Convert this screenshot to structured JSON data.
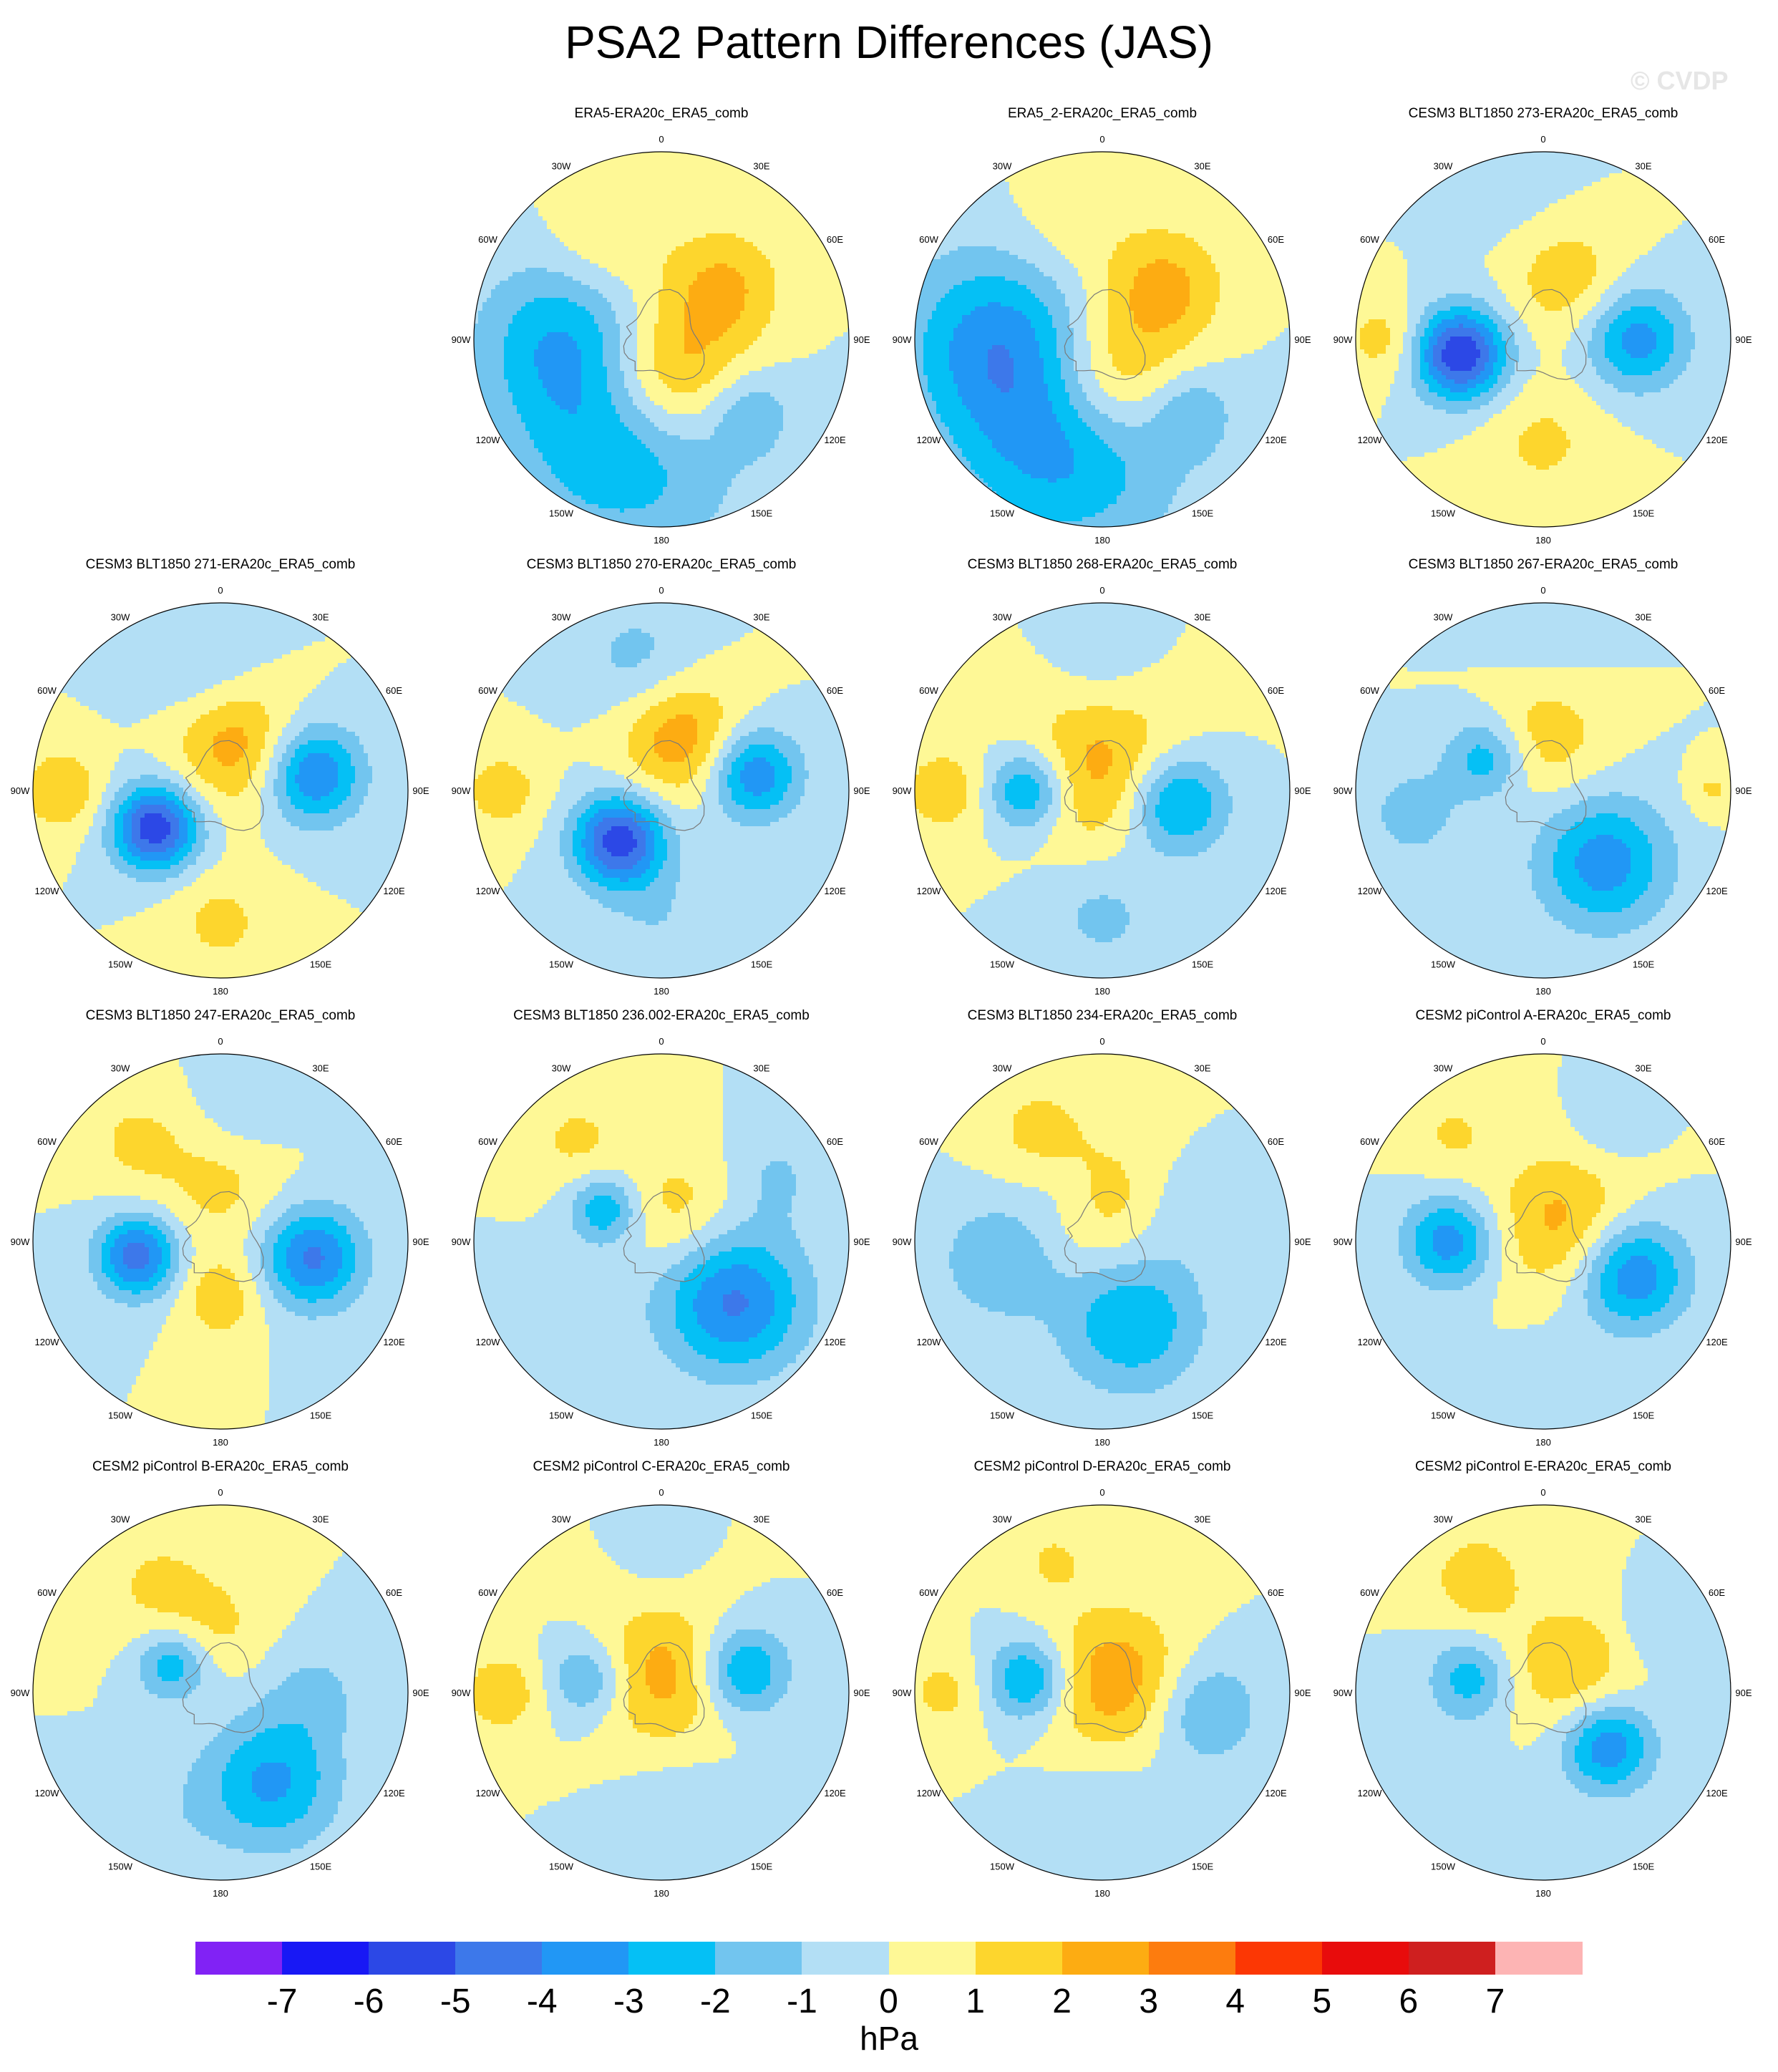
{
  "title": "PSA2 Pattern Differences (JAS)",
  "watermark": "© CVDP",
  "colorbar": {
    "units": "hPa",
    "tick_labels": [
      "-7",
      "-6",
      "-5",
      "-4",
      "-3",
      "-2",
      "-1",
      "0",
      "1",
      "2",
      "3",
      "4",
      "5",
      "6",
      "7"
    ],
    "colors": [
      "#8122f5",
      "#1818f5",
      "#2c48e6",
      "#3d78ea",
      "#2197f5",
      "#05c0f5",
      "#72c5ef",
      "#b3dff5",
      "#fef896",
      "#fdd62d",
      "#fdac12",
      "#fd7c0e",
      "#fc3704",
      "#e80c0c",
      "#cf1f1f",
      "#fdb4b4"
    ]
  },
  "longitude_labels": [
    "0",
    "30E",
    "60E",
    "90E",
    "120E",
    "150E",
    "180",
    "150W",
    "120W",
    "90W",
    "60W",
    "30W"
  ],
  "chart_data": {
    "type": "polar-contour-map",
    "projection": "south-polar-stereographic",
    "variable_units": "hPa",
    "levels": [
      -7,
      -6,
      -5,
      -4,
      -3,
      -2,
      -1,
      0,
      1,
      2,
      3,
      4,
      5,
      6,
      7
    ],
    "panels": [
      {
        "title": "ERA5-ERA20c_ERA5_comb",
        "pattern": [
          [
            330,
            0.6,
            55,
            1.2
          ],
          [
            50,
            0.42,
            60,
            2.3
          ],
          [
            170,
            0.2,
            70,
            3.6
          ],
          [
            200,
            0.55,
            110,
            -3.2
          ],
          [
            270,
            0.55,
            80,
            -2.4
          ],
          [
            130,
            0.62,
            40,
            -1.5
          ]
        ]
      },
      {
        "title": "ERA5_2-ERA20c_ERA5_comb",
        "pattern": [
          [
            340,
            0.6,
            60,
            0.8
          ],
          [
            50,
            0.42,
            60,
            2.5
          ],
          [
            170,
            0.2,
            70,
            3.3
          ],
          [
            200,
            0.55,
            110,
            -3.6
          ],
          [
            270,
            0.58,
            90,
            -3.0
          ],
          [
            130,
            0.62,
            40,
            -1.5
          ]
        ]
      },
      {
        "title": "CESM3 BLT1850 273-ERA20c_ERA5_comb",
        "pattern": [
          [
            260,
            0.45,
            45,
            -6.0
          ],
          [
            90,
            0.5,
            50,
            -3.5
          ],
          [
            20,
            0.35,
            55,
            1.8
          ],
          [
            270,
            0.85,
            40,
            1.5
          ],
          [
            180,
            0.55,
            60,
            1.2
          ],
          [
            350,
            0.7,
            60,
            -0.4
          ]
        ]
      },
      {
        "title": "CESM3 BLT1850 271-ERA20c_ERA5_comb",
        "pattern": [
          [
            240,
            0.4,
            42,
            -5.8
          ],
          [
            80,
            0.5,
            48,
            -4.2
          ],
          [
            20,
            0.25,
            60,
            2.6
          ],
          [
            270,
            0.85,
            40,
            2.0
          ],
          [
            180,
            0.7,
            50,
            1.3
          ],
          [
            350,
            0.7,
            60,
            -1.1
          ]
        ]
      },
      {
        "title": "CESM3 BLT1850 270-ERA20c_ERA5_comb",
        "pattern": [
          [
            220,
            0.35,
            45,
            -5.6
          ],
          [
            80,
            0.5,
            45,
            -4.0
          ],
          [
            20,
            0.3,
            60,
            2.8
          ],
          [
            270,
            0.85,
            40,
            1.6
          ],
          [
            180,
            0.7,
            60,
            -0.9
          ],
          [
            350,
            0.7,
            60,
            -1.4
          ]
        ]
      },
      {
        "title": "CESM3 BLT1850 268-ERA20c_ERA5_comb",
        "pattern": [
          [
            270,
            0.4,
            40,
            -3.6
          ],
          [
            100,
            0.4,
            50,
            -3.8
          ],
          [
            0,
            0.1,
            80,
            2.5
          ],
          [
            270,
            0.85,
            40,
            1.8
          ],
          [
            180,
            0.65,
            60,
            -1.3
          ],
          [
            0,
            0.7,
            50,
            -0.8
          ]
        ]
      },
      {
        "title": "CESM3 BLT1850 267-ERA20c_ERA5_comb",
        "pattern": [
          [
            300,
            0.35,
            40,
            -2.8
          ],
          [
            140,
            0.5,
            65,
            -3.6
          ],
          [
            0,
            0.3,
            60,
            1.8
          ],
          [
            260,
            0.7,
            45,
            -1.6
          ],
          [
            90,
            0.9,
            25,
            1.2
          ],
          [
            0,
            0.7,
            60,
            -0.5
          ]
        ]
      },
      {
        "title": "CESM3 BLT1850 247-ERA20c_ERA5_comb",
        "pattern": [
          [
            260,
            0.45,
            40,
            -4.6
          ],
          [
            100,
            0.5,
            50,
            -4.2
          ],
          [
            180,
            0.3,
            40,
            1.8
          ],
          [
            0,
            0.3,
            60,
            1.3
          ],
          [
            320,
            0.7,
            50,
            1.2
          ],
          [
            10,
            0.7,
            50,
            -0.8
          ]
        ]
      },
      {
        "title": "CESM3 BLT1850 236.002-ERA20c_ERA5_comb",
        "pattern": [
          [
            300,
            0.35,
            35,
            -3.0
          ],
          [
            130,
            0.5,
            70,
            -4.2
          ],
          [
            30,
            0.2,
            60,
            1.5
          ],
          [
            320,
            0.7,
            50,
            1.2
          ],
          [
            60,
            0.7,
            50,
            -1.1
          ],
          [
            230,
            0.6,
            60,
            -0.5
          ]
        ]
      },
      {
        "title": "CESM3 BLT1850 234-ERA20c_ERA5_comb",
        "pattern": [
          [
            160,
            0.45,
            70,
            -3.0
          ],
          [
            260,
            0.55,
            60,
            -2.0
          ],
          [
            0,
            0.2,
            70,
            1.6
          ],
          [
            330,
            0.7,
            50,
            1.2
          ],
          [
            70,
            0.5,
            50,
            -1.0
          ],
          [
            320,
            0.35,
            40,
            -0.8
          ]
        ]
      },
      {
        "title": "CESM2 piControl A-ERA20c_ERA5_comb",
        "pattern": [
          [
            270,
            0.5,
            45,
            -3.6
          ],
          [
            110,
            0.5,
            55,
            -4.1
          ],
          [
            50,
            0.15,
            70,
            2.4
          ],
          [
            320,
            0.75,
            45,
            1.1
          ],
          [
            30,
            0.7,
            40,
            -0.8
          ],
          [
            180,
            0.7,
            50,
            -0.4
          ]
        ]
      },
      {
        "title": "CESM2 piControl B-ERA20c_ERA5_comb",
        "pattern": [
          [
            300,
            0.3,
            35,
            -2.8
          ],
          [
            150,
            0.55,
            65,
            -3.2
          ],
          [
            330,
            0.65,
            60,
            1.2
          ],
          [
            90,
            0.5,
            50,
            -1.2
          ],
          [
            0,
            0.35,
            50,
            1.0
          ],
          [
            200,
            0.7,
            60,
            -0.6
          ]
        ]
      },
      {
        "title": "CESM2 piControl C-ERA20c_ERA5_comb",
        "pattern": [
          [
            75,
            0.45,
            45,
            -3.4
          ],
          [
            280,
            0.4,
            40,
            -2.4
          ],
          [
            10,
            0.1,
            70,
            2.5
          ],
          [
            270,
            0.85,
            40,
            1.8
          ],
          [
            170,
            0.7,
            60,
            -1.0
          ],
          [
            0,
            0.7,
            40,
            -0.5
          ]
        ]
      },
      {
        "title": "CESM2 piControl D-ERA20c_ERA5_comb",
        "pattern": [
          [
            280,
            0.4,
            40,
            -3.4
          ],
          [
            100,
            0.55,
            55,
            -2.2
          ],
          [
            50,
            0.1,
            70,
            2.8
          ],
          [
            270,
            0.85,
            40,
            1.3
          ],
          [
            340,
            0.75,
            40,
            1.1
          ],
          [
            180,
            0.65,
            60,
            -0.8
          ]
        ]
      },
      {
        "title": "CESM2 piControl E-ERA20c_ERA5_comb",
        "pattern": [
          [
            130,
            0.45,
            45,
            -3.8
          ],
          [
            280,
            0.4,
            40,
            -2.5
          ],
          [
            45,
            0.2,
            60,
            2.0
          ],
          [
            330,
            0.7,
            45,
            1.8
          ],
          [
            60,
            0.7,
            40,
            -1.0
          ],
          [
            230,
            0.7,
            50,
            -0.6
          ]
        ]
      }
    ]
  }
}
